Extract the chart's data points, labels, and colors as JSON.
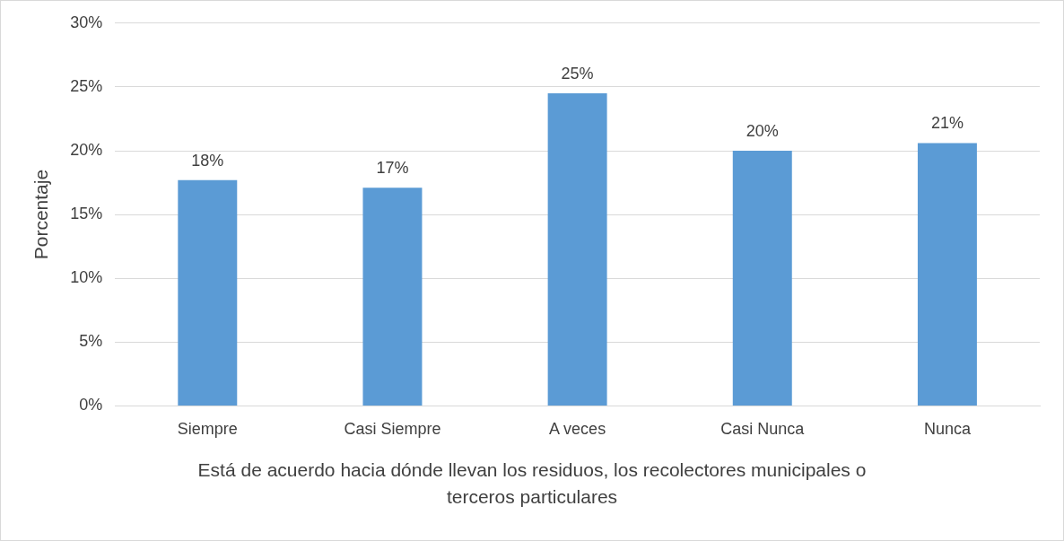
{
  "chart_data": {
    "type": "bar",
    "xlabel": "Está de acuerdo hacia dónde llevan los residuos, los recolectores municipales o terceros particulares",
    "ylabel": "Porcentaje",
    "categories": [
      "Siempre",
      "Casi Siempre",
      "A veces",
      "Casi Nunca",
      "Nunca"
    ],
    "values": [
      17.7,
      17.1,
      24.5,
      20.0,
      20.6
    ],
    "value_labels": [
      "18%",
      "17%",
      "25%",
      "20%",
      "21%"
    ],
    "color": "#5b9bd5",
    "ylim": [
      0,
      30
    ],
    "yticks": [
      {
        "value": 0,
        "label": "0%"
      },
      {
        "value": 5,
        "label": "5%"
      },
      {
        "value": 10,
        "label": "10%"
      },
      {
        "value": 15,
        "label": "15%"
      },
      {
        "value": 20,
        "label": "20%"
      },
      {
        "value": 25,
        "label": "25%"
      },
      {
        "value": 30,
        "label": "30%"
      }
    ],
    "grid": "y",
    "legend": false
  }
}
